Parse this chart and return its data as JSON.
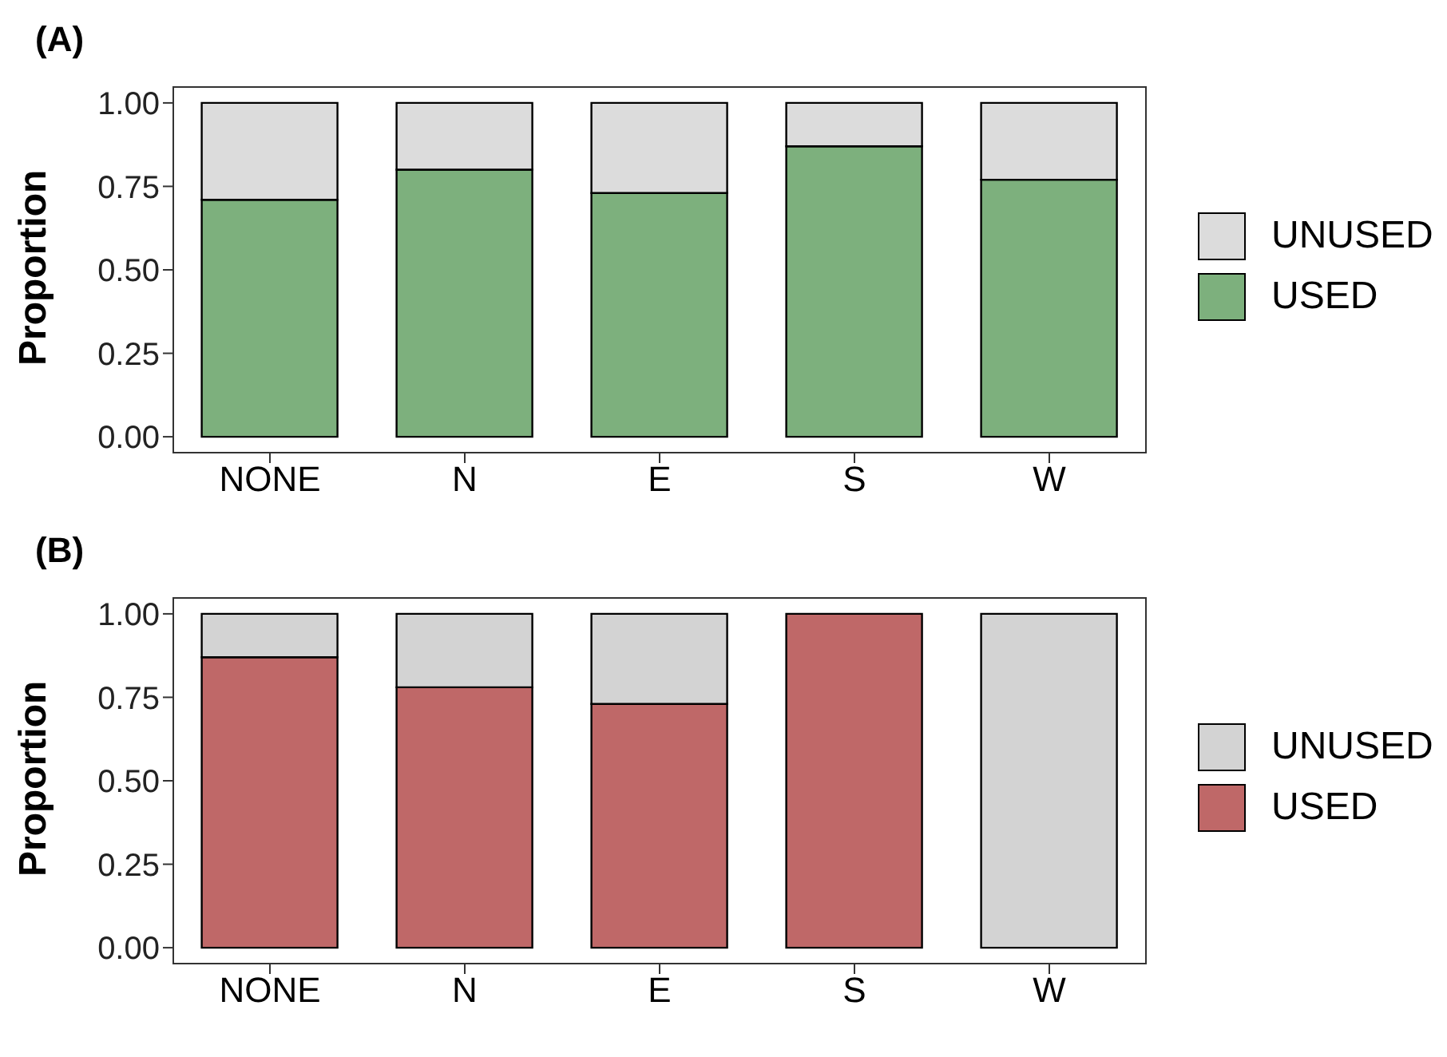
{
  "chart_data": [
    {
      "type": "bar",
      "title": "(A)",
      "ylabel": "Proportion",
      "categories": [
        "NONE",
        "N",
        "E",
        "S",
        "W"
      ],
      "stacked": true,
      "series": [
        {
          "name": "USED",
          "color": "#7db07d",
          "values": [
            0.71,
            0.8,
            0.73,
            0.87,
            0.77
          ]
        },
        {
          "name": "UNUSED",
          "color": "#dcdcdc",
          "values": [
            0.29,
            0.2,
            0.27,
            0.13,
            0.23
          ]
        }
      ],
      "ylim": [
        -0.05,
        1.05
      ],
      "yticks": [
        {
          "value": 0,
          "label": "0.00"
        },
        {
          "value": 0.25,
          "label": "0.25"
        },
        {
          "value": 0.5,
          "label": "0.50"
        },
        {
          "value": 0.75,
          "label": "0.75"
        },
        {
          "value": 1,
          "label": "1.00"
        }
      ],
      "grid": false,
      "legend": "right"
    },
    {
      "type": "bar",
      "title": "(B)",
      "ylabel": "Proportion",
      "categories": [
        "NONE",
        "N",
        "E",
        "S",
        "W"
      ],
      "stacked": true,
      "series": [
        {
          "name": "USED",
          "color": "#bf6868",
          "values": [
            0.87,
            0.78,
            0.73,
            1.0,
            0
          ]
        },
        {
          "name": "UNUSED",
          "color": "#d3d3d3",
          "values": [
            0.13,
            0.22,
            0.27,
            0,
            1.0
          ]
        }
      ],
      "ylim": [
        -0.05,
        1.05
      ],
      "yticks": [
        {
          "value": 0,
          "label": "0.00"
        },
        {
          "value": 0.25,
          "label": "0.25"
        },
        {
          "value": 0.5,
          "label": "0.50"
        },
        {
          "value": 0.75,
          "label": "0.75"
        },
        {
          "value": 1,
          "label": "1.00"
        }
      ],
      "grid": false,
      "legend": "right"
    }
  ]
}
